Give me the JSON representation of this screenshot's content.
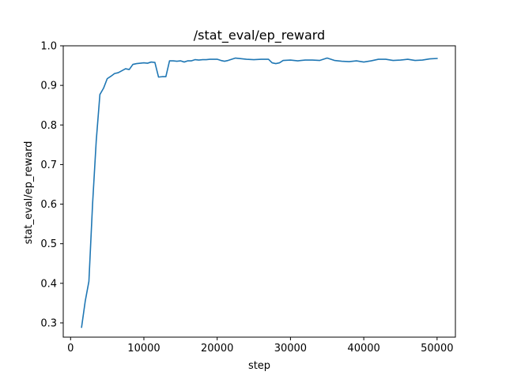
{
  "chart_data": {
    "type": "line",
    "title": "/stat_eval/ep_reward",
    "xlabel": "step",
    "ylabel": "stat_eval/ep_reward",
    "xlim": [
      -1000,
      52500
    ],
    "ylim": [
      0.264,
      1.0
    ],
    "xticks": [
      0,
      10000,
      20000,
      30000,
      40000,
      50000
    ],
    "xtick_labels": [
      "0",
      "10000",
      "20000",
      "30000",
      "40000",
      "50000"
    ],
    "yticks": [
      0.3,
      0.4,
      0.5,
      0.6,
      0.7,
      0.8,
      0.9,
      1.0
    ],
    "ytick_labels": [
      "0.3",
      "0.4",
      "0.5",
      "0.6",
      "0.7",
      "0.8",
      "0.9",
      "1.0"
    ],
    "grid": false,
    "line_color": "#1f77b4",
    "series": [
      {
        "x": [
          1500,
          2000,
          2500,
          3000,
          3500,
          4000,
          4500,
          5000,
          5500,
          6000,
          6500,
          7000,
          7500,
          8000,
          8500,
          9000,
          9500,
          10000,
          10500,
          11000,
          11500,
          12000,
          12500,
          13000,
          13500,
          14000,
          14500,
          15000,
          15500,
          16000,
          16500,
          17000,
          17500,
          18000,
          18500,
          19000,
          19500,
          20000,
          20500,
          21000,
          21500,
          22000,
          22500,
          23000,
          23500,
          24000,
          25000,
          26000,
          27000,
          27500,
          28000,
          28500,
          29000,
          30000,
          31000,
          32000,
          33000,
          34000,
          35000,
          36000,
          37000,
          38000,
          39000,
          40000,
          41000,
          42000,
          43000,
          44000,
          45000,
          46000,
          47000,
          48000,
          49000,
          50000
        ],
        "y": [
          0.289,
          0.355,
          0.405,
          0.6,
          0.76,
          0.877,
          0.893,
          0.917,
          0.923,
          0.93,
          0.932,
          0.937,
          0.942,
          0.94,
          0.953,
          0.955,
          0.956,
          0.957,
          0.956,
          0.959,
          0.958,
          0.921,
          0.922,
          0.922,
          0.962,
          0.962,
          0.961,
          0.962,
          0.959,
          0.962,
          0.962,
          0.965,
          0.964,
          0.965,
          0.965,
          0.966,
          0.966,
          0.966,
          0.963,
          0.961,
          0.963,
          0.966,
          0.969,
          0.968,
          0.967,
          0.966,
          0.965,
          0.966,
          0.966,
          0.957,
          0.955,
          0.957,
          0.963,
          0.964,
          0.962,
          0.964,
          0.964,
          0.963,
          0.969,
          0.963,
          0.961,
          0.96,
          0.962,
          0.959,
          0.962,
          0.966,
          0.966,
          0.963,
          0.964,
          0.966,
          0.963,
          0.964,
          0.967,
          0.968
        ]
      }
    ]
  }
}
